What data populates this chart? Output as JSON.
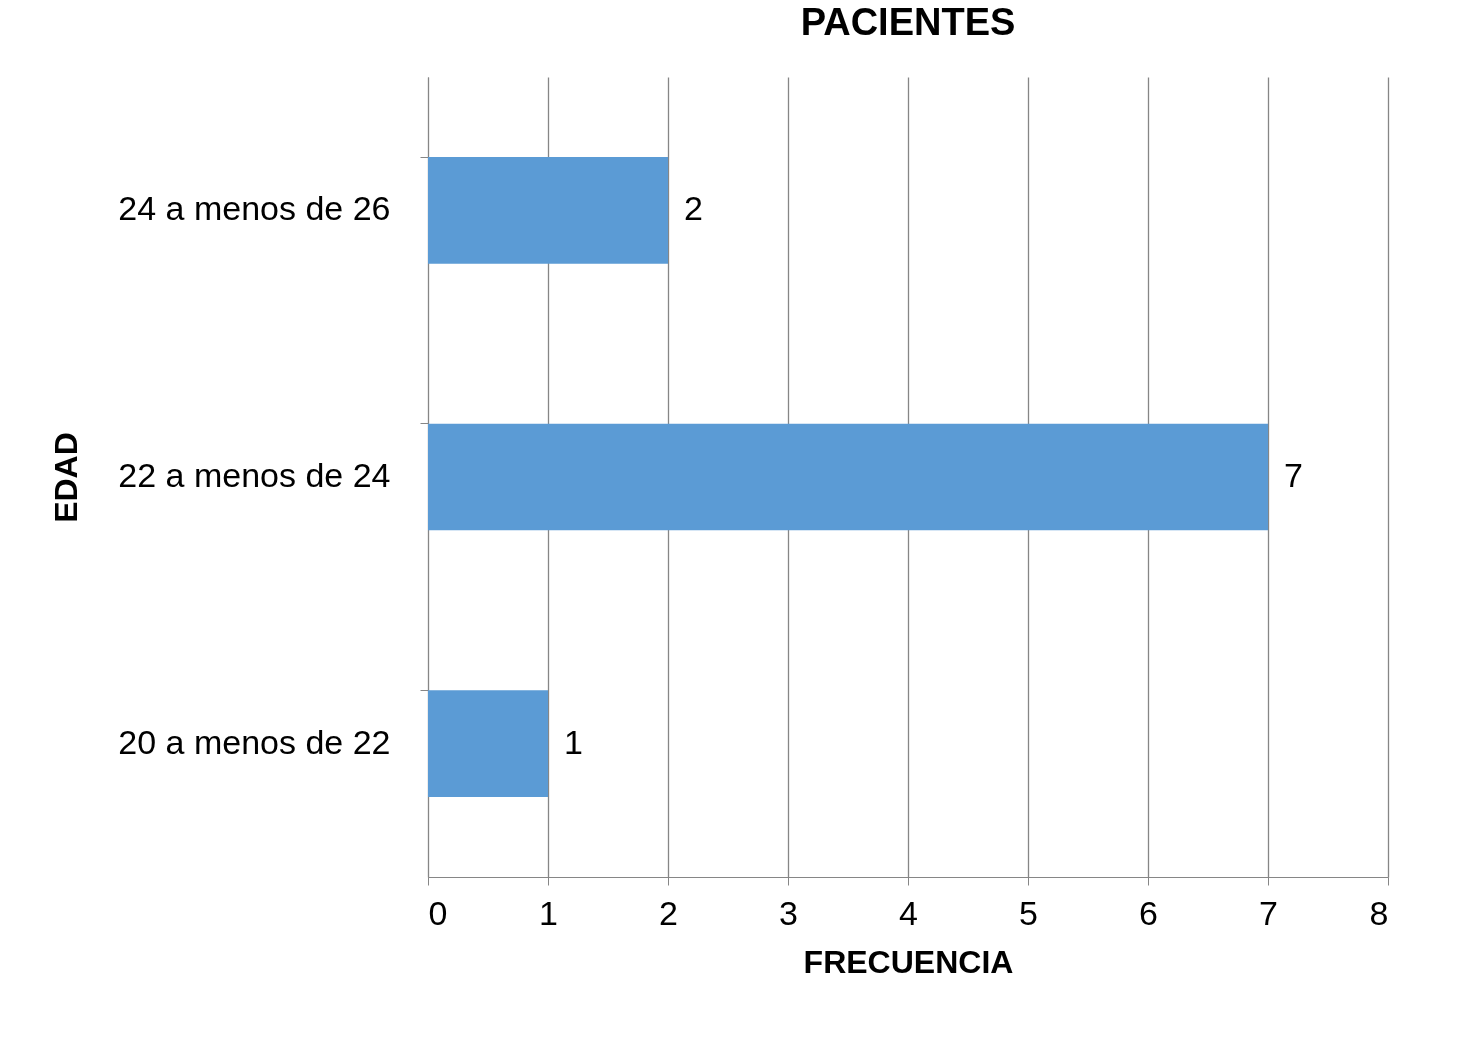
{
  "chart_data": {
    "type": "bar",
    "orientation": "horizontal",
    "title": "PACIENTES",
    "xlabel": "FRECUENCIA",
    "ylabel": "EDAD",
    "categories": [
      "24 a menos de 26",
      "22 a menos de 24",
      "20 a menos de 22"
    ],
    "values": [
      2,
      7,
      1
    ],
    "color": "#5b9bd5",
    "xlim": [
      0,
      8
    ],
    "xticks": [
      0,
      1,
      2,
      3,
      4,
      5,
      6,
      7,
      8
    ],
    "grid": "x",
    "data_labels": true
  }
}
